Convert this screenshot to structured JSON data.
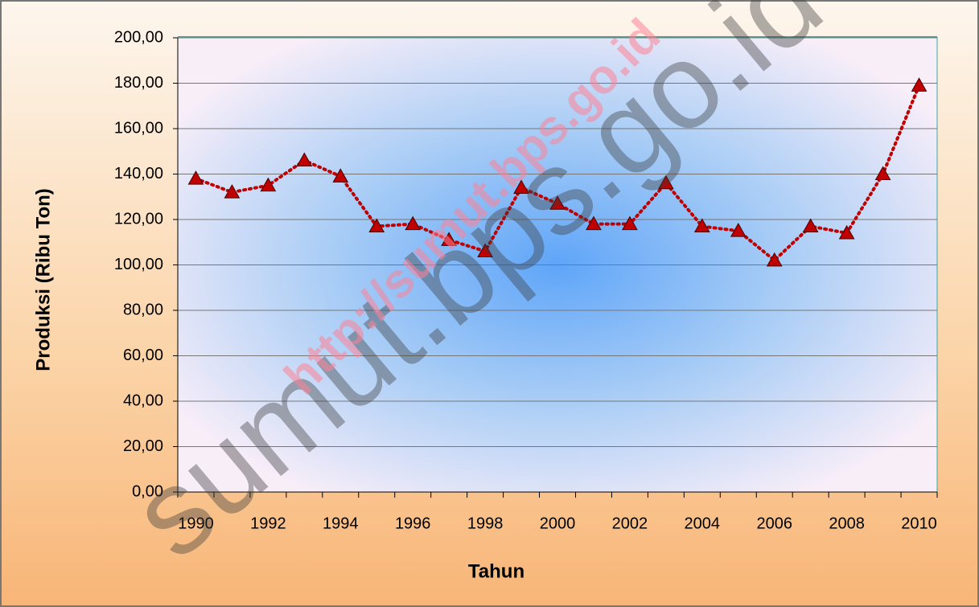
{
  "chart_data": {
    "type": "line",
    "x_label": "Tahun",
    "y_label": "Produksi (Ribu Ton)",
    "categories": [
      "1990",
      null,
      "1992",
      null,
      "1994",
      null,
      "1996",
      null,
      "1998",
      null,
      "2000",
      null,
      "2002",
      null,
      "2004",
      null,
      "2006",
      null,
      "2008",
      null,
      "2010"
    ],
    "series": [
      {
        "color": "#c00000",
        "values": [
          138,
          132,
          135,
          146,
          139,
          117,
          118,
          111,
          106,
          134,
          127,
          118,
          118,
          136,
          117,
          115,
          102,
          117,
          114,
          140,
          179
        ]
      }
    ],
    "ylim": [
      0,
      200
    ],
    "yticks": [
      {
        "value": 0,
        "label": "0,00"
      },
      {
        "value": 20,
        "label": "20,00"
      },
      {
        "value": 40,
        "label": "40,00"
      },
      {
        "value": 60,
        "label": "60,00"
      },
      {
        "value": 80,
        "label": "80,00"
      },
      {
        "value": 100,
        "label": "100,00"
      },
      {
        "value": 120,
        "label": "120,00"
      },
      {
        "value": 140,
        "label": "140,00"
      },
      {
        "value": 160,
        "label": "160,00"
      },
      {
        "value": 180,
        "label": "180,00"
      },
      {
        "value": 200,
        "label": "200,00"
      }
    ],
    "grid": true,
    "watermarks": [
      "sumut.bps.go.id",
      "http://sumut.bps.go.id"
    ]
  }
}
